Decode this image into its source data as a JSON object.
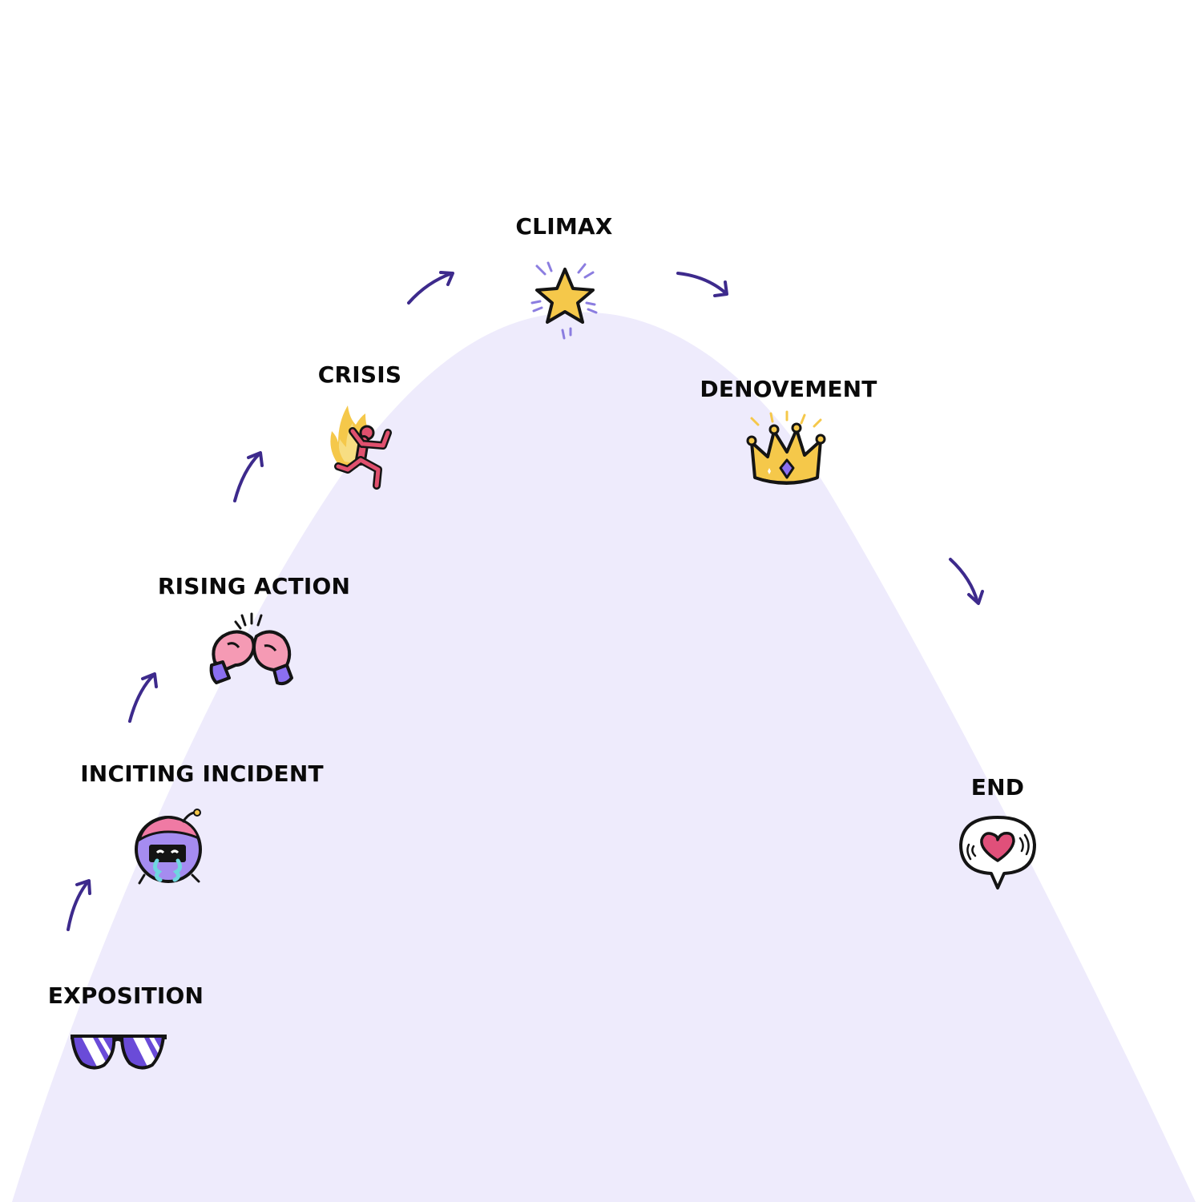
{
  "stages": [
    {
      "id": "exposition",
      "label": "EXPOSITION",
      "icon": "sunglasses-icon"
    },
    {
      "id": "inciting-incident",
      "label": "INCITING INCIDENT",
      "icon": "crying-face-icon"
    },
    {
      "id": "rising-action",
      "label": "RISING ACTION",
      "icon": "boxing-gloves-icon"
    },
    {
      "id": "crisis",
      "label": "CRISIS",
      "icon": "person-on-fire-icon"
    },
    {
      "id": "climax",
      "label": "CLIMAX",
      "icon": "star-icon"
    },
    {
      "id": "denouement",
      "label": "DENOVEMENT",
      "icon": "crown-icon"
    },
    {
      "id": "end",
      "label": "END",
      "icon": "heart-speech-bubble-icon"
    }
  ],
  "colors": {
    "mountain": "#eeebfc",
    "arrow": "#3d2a8c",
    "text": "#0a0a0a"
  }
}
